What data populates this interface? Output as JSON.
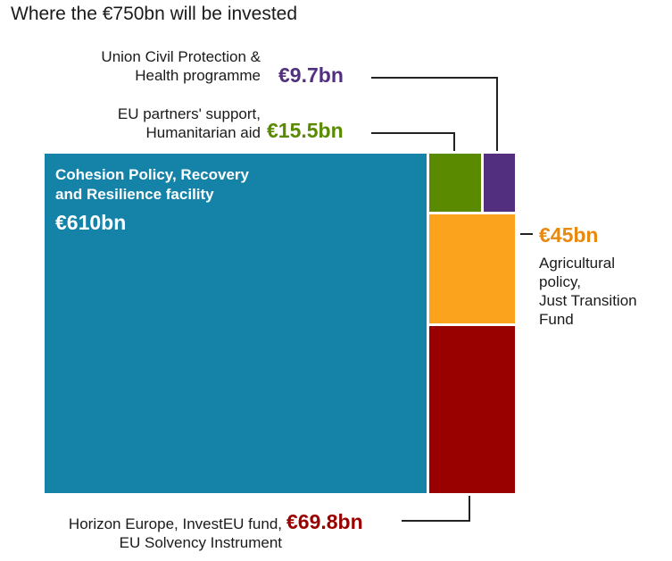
{
  "title": "Where the €750bn will be invested",
  "colors": {
    "cohesion": "#1582a8",
    "partners": "#5a8a00",
    "civil": "#53307f",
    "agri": "#fba31c",
    "horizon": "#990000",
    "connector": "#222222"
  },
  "chart_data": {
    "type": "treemap",
    "unit": "€bn",
    "total_label": "€750bn",
    "items": [
      {
        "id": "cohesion",
        "label_lines": [
          "Cohesion Policy, Recovery",
          "and Resilience facility"
        ],
        "value": 610,
        "value_label": "€610bn"
      },
      {
        "id": "horizon",
        "label_lines": [
          "Horizon Europe, InvestEU fund,",
          "EU Solvency Instrument"
        ],
        "value": 69.8,
        "value_label": "€69.8bn"
      },
      {
        "id": "agri",
        "label_lines": [
          "Agricultural",
          "policy,",
          "Just Transition",
          "Fund"
        ],
        "value": 45,
        "value_label": "€45bn"
      },
      {
        "id": "partners",
        "label_lines": [
          "EU partners' support,",
          "Humanitarian aid"
        ],
        "value": 15.5,
        "value_label": "€15.5bn"
      },
      {
        "id": "civil",
        "label_lines": [
          "Union Civil Protection &",
          "Health programme"
        ],
        "value": 9.7,
        "value_label": "€9.7bn"
      }
    ]
  }
}
